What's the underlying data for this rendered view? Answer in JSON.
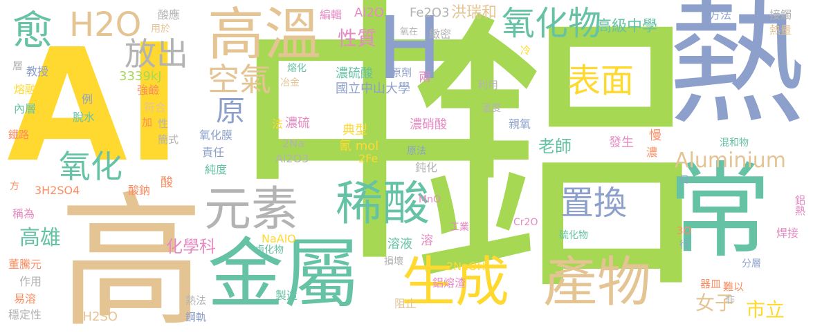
{
  "palette": {
    "yellow": "#ffd92f",
    "lime": "#a6d854",
    "teal": "#66c2a5",
    "blue": "#8da0cb",
    "tan": "#e5c494",
    "pink": "#e78ac3",
    "orange": "#fc8d62",
    "gray": "#b3b3b3"
  },
  "words": [
    {
      "text": "鋁",
      "color": "#a6d854"
    },
    {
      "text": "中",
      "color": "#a6d854"
    },
    {
      "text": "Al",
      "color": "#ffd92f"
    },
    {
      "text": "熱",
      "color": "#8da0cb"
    },
    {
      "text": "高",
      "color": "#e5c494"
    },
    {
      "text": "常",
      "color": "#66c2a5"
    },
    {
      "text": "金屬",
      "color": "#66c2a5"
    },
    {
      "text": "H",
      "color": "#8da0cb"
    },
    {
      "text": "高溫",
      "color": "#e5c494"
    },
    {
      "text": "生成",
      "color": "#ffd92f"
    },
    {
      "text": "產物",
      "color": "#e5c494"
    },
    {
      "text": "稀酸",
      "color": "#66c2a5"
    },
    {
      "text": "元素",
      "color": "#b3b3b3"
    },
    {
      "text": "氧化物",
      "color": "#66c2a5"
    },
    {
      "text": "表面",
      "color": "#ffd92f"
    },
    {
      "text": "置換",
      "color": "#8da0cb"
    },
    {
      "text": "空氣",
      "color": "#e5c494"
    },
    {
      "text": "放出",
      "color": "#b3b3b3"
    },
    {
      "text": "H2O",
      "color": "#e5c494"
    },
    {
      "text": "愈",
      "color": "#66c2a5"
    },
    {
      "text": "氧化",
      "color": "#66c2a5"
    },
    {
      "text": "原",
      "color": "#8da0cb"
    },
    {
      "text": "Aluminium",
      "color": "#e5c494"
    },
    {
      "text": "高級中學",
      "color": "#66c2a5"
    },
    {
      "text": "性質",
      "color": "#e78ac3"
    },
    {
      "text": "洪瑞和",
      "color": "#e5c494"
    },
    {
      "text": "國立中山大學",
      "color": "#8da0cb"
    },
    {
      "text": "濃硫酸",
      "color": "#66c2a5"
    },
    {
      "text": "高雄",
      "color": "#66c2a5"
    },
    {
      "text": "化學科",
      "color": "#e78ac3"
    },
    {
      "text": "女子",
      "color": "#e5c494"
    },
    {
      "text": "市立",
      "color": "#ffd92f"
    },
    {
      "text": "老師",
      "color": "#66c2a5"
    },
    {
      "text": "3339kJ",
      "color": "#a6d854"
    },
    {
      "text": "Fe2O3",
      "color": "#b3b3b3"
    },
    {
      "text": "Al2O",
      "color": "#e78ac3"
    },
    {
      "text": "編輯",
      "color": "#e78ac3"
    },
    {
      "text": "酸應",
      "color": "#b3b3b3"
    },
    {
      "text": "用於",
      "color": "#e5c494"
    },
    {
      "text": "方法",
      "color": "#8da0cb"
    },
    {
      "text": "接觸",
      "color": "#b3b3b3"
    },
    {
      "text": "熱量",
      "color": "#e5c494"
    },
    {
      "text": "層",
      "color": "#b3b3b3"
    },
    {
      "text": "教授",
      "color": "#8da0cb"
    },
    {
      "text": "熔融",
      "color": "#ffd92f"
    },
    {
      "text": "內層",
      "color": "#66c2a5"
    },
    {
      "text": "例",
      "color": "#8da0cb"
    },
    {
      "text": "脫水",
      "color": "#66c2a5"
    },
    {
      "text": "強鹼",
      "color": "#fc8d62"
    },
    {
      "text": "符合",
      "color": "#e5c494"
    },
    {
      "text": "熔化",
      "color": "#66c2a5"
    },
    {
      "text": "冶金",
      "color": "#e5c494"
    },
    {
      "text": "加",
      "color": "#fc8d62"
    },
    {
      "text": "性",
      "color": "#b3b3b3"
    },
    {
      "text": "簡式",
      "color": "#b3b3b3"
    },
    {
      "text": "氧化膜",
      "color": "#8da0cb"
    },
    {
      "text": "責任",
      "color": "#8da0cb"
    },
    {
      "text": "純度",
      "color": "#66c2a5"
    },
    {
      "text": "鐵路",
      "color": "#fc8d62"
    },
    {
      "text": "方",
      "color": "#fc8d62"
    },
    {
      "text": "稱為",
      "color": "#e78ac3"
    },
    {
      "text": "3H2SO4",
      "color": "#fc8d62"
    },
    {
      "text": "酸鈉",
      "color": "#fc8d62"
    },
    {
      "text": "酸",
      "color": "#fc8d62"
    },
    {
      "text": "董騰元",
      "color": "#fc8d62"
    },
    {
      "text": "作用",
      "color": "#b3b3b3"
    },
    {
      "text": "易溶",
      "color": "#fc8d62"
    },
    {
      "text": "穩定性",
      "color": "#b3b3b3"
    },
    {
      "text": "6H2SO",
      "color": "#e5c494"
    },
    {
      "text": "熱法",
      "color": "#b3b3b3"
    },
    {
      "text": "鋼軌",
      "color": "#8da0cb"
    },
    {
      "text": "製造",
      "color": "#66c2a5"
    },
    {
      "text": "鹵化物",
      "color": "#66c2a5"
    },
    {
      "text": "NaAlO",
      "color": "#ffd92f"
    },
    {
      "text": "損壞",
      "color": "#b3b3b3"
    },
    {
      "text": "鋁熔渣",
      "color": "#e78ac3"
    },
    {
      "text": "阻止",
      "color": "#e5c494"
    },
    {
      "text": "2NaOH",
      "color": "#ffd92f"
    },
    {
      "text": "溶液",
      "color": "#66c2a5"
    },
    {
      "text": "溶",
      "color": "#e78ac3"
    },
    {
      "text": "MnO",
      "color": "#e78ac3"
    },
    {
      "text": "工業",
      "color": "#e78ac3"
    },
    {
      "text": "Cr2O",
      "color": "#e78ac3"
    },
    {
      "text": "硫化物",
      "color": "#66c2a5"
    },
    {
      "text": "典型",
      "color": "#ffd92f"
    },
    {
      "text": "氰 mol",
      "color": "#ffd92f"
    },
    {
      "text": "2Fe",
      "color": "#ffd92f"
    },
    {
      "text": "2Na",
      "color": "#b3b3b3"
    },
    {
      "text": "Al2O3",
      "color": "#b3b3b3"
    },
    {
      "text": "法",
      "color": "#ffd92f"
    },
    {
      "text": "濃硫",
      "color": "#e78ac3"
    },
    {
      "text": "濃硝酸",
      "color": "#e78ac3"
    },
    {
      "text": "原法",
      "color": "#8da0cb"
    },
    {
      "text": "鈍化",
      "color": "#b3b3b3"
    },
    {
      "text": "溫度",
      "color": "#b3b3b3"
    },
    {
      "text": "親氧",
      "color": "#8da0cb"
    },
    {
      "text": "利用",
      "color": "#b3b3b3"
    },
    {
      "text": "原劑",
      "color": "#8da0cb"
    },
    {
      "text": "兩",
      "color": "#e78ac3"
    },
    {
      "text": "氧在",
      "color": "#b3b3b3"
    },
    {
      "text": "緻密",
      "color": "#b3b3b3"
    },
    {
      "text": "冷",
      "color": "#ffd92f"
    },
    {
      "text": "發生",
      "color": "#e78ac3"
    },
    {
      "text": "慢",
      "color": "#fc8d62"
    },
    {
      "text": "濃",
      "color": "#fc8d62"
    },
    {
      "text": "混和物",
      "color": "#66c2a5"
    },
    {
      "text": "日",
      "color": "#8da0cb"
    },
    {
      "text": "鋁熱",
      "color": "#e78ac3"
    },
    {
      "text": "焊接",
      "color": "#e78ac3"
    },
    {
      "text": "3O",
      "color": "#fc8d62"
    },
    {
      "text": "行",
      "color": "#8da0cb"
    },
    {
      "text": "分層",
      "color": "#8da0cb"
    },
    {
      "text": "難以",
      "color": "#fc8d62"
    },
    {
      "text": "器皿",
      "color": "#fc8d62"
    },
    {
      "text": "非",
      "color": "#b3b3b3"
    }
  ]
}
